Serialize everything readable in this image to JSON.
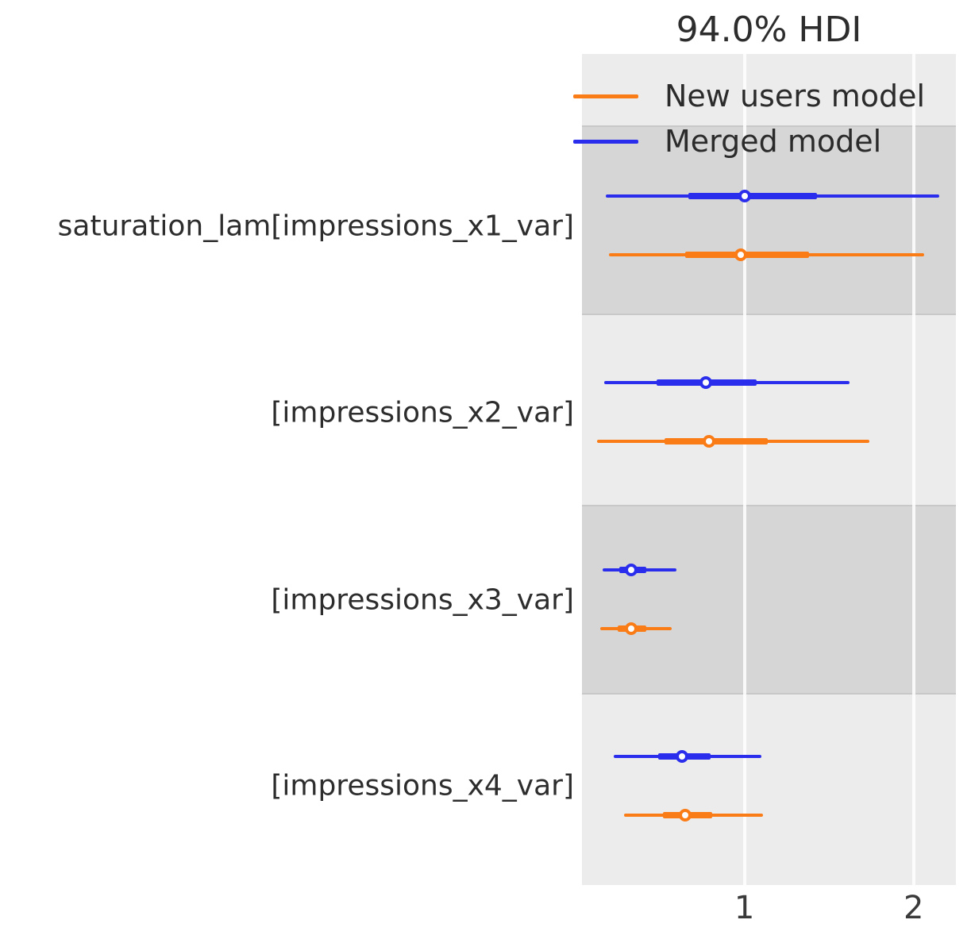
{
  "chart_data": {
    "type": "forest",
    "title": "94.0% HDI",
    "hdi_probability": "94.0%",
    "xlim": [
      0.04,
      2.25
    ],
    "x_ticks": [
      "1",
      "2"
    ],
    "x_tick_values": [
      1,
      2
    ],
    "grid": "vertical",
    "legend_position": "upper-left-inside",
    "legend": [
      {
        "label": "New users model",
        "color": "#fa7c17"
      },
      {
        "label": "Merged model",
        "color": "#2a2eec"
      }
    ],
    "variables": [
      {
        "label": "saturation_lam[impressions_x1_var]",
        "shaded": true,
        "series": [
          {
            "model": "Merged model",
            "color": "#2a2eec",
            "hdi_94": [
              0.18,
              2.15
            ],
            "iqr": [
              0.67,
              1.43
            ],
            "median": 1.0
          },
          {
            "model": "New users model",
            "color": "#fa7c17",
            "hdi_94": [
              0.2,
              2.06
            ],
            "iqr": [
              0.65,
              1.38
            ],
            "median": 0.98
          }
        ]
      },
      {
        "label": "[impressions_x2_var]",
        "shaded": false,
        "series": [
          {
            "model": "Merged model",
            "color": "#2a2eec",
            "hdi_94": [
              0.17,
              1.62
            ],
            "iqr": [
              0.48,
              1.07
            ],
            "median": 0.77
          },
          {
            "model": "New users model",
            "color": "#fa7c17",
            "hdi_94": [
              0.13,
              1.74
            ],
            "iqr": [
              0.53,
              1.14
            ],
            "median": 0.79
          }
        ]
      },
      {
        "label": "[impressions_x3_var]",
        "shaded": true,
        "series": [
          {
            "model": "Merged model",
            "color": "#2a2eec",
            "hdi_94": [
              0.16,
              0.6
            ],
            "iqr": [
              0.26,
              0.42
            ],
            "median": 0.33
          },
          {
            "model": "New users model",
            "color": "#fa7c17",
            "hdi_94": [
              0.15,
              0.57
            ],
            "iqr": [
              0.25,
              0.42
            ],
            "median": 0.33
          }
        ]
      },
      {
        "label": "[impressions_x4_var]",
        "shaded": false,
        "series": [
          {
            "model": "Merged model",
            "color": "#2a2eec",
            "hdi_94": [
              0.23,
              1.1
            ],
            "iqr": [
              0.49,
              0.8
            ],
            "median": 0.63
          },
          {
            "model": "New users model",
            "color": "#fa7c17",
            "hdi_94": [
              0.29,
              1.11
            ],
            "iqr": [
              0.52,
              0.81
            ],
            "median": 0.65
          }
        ]
      }
    ]
  }
}
